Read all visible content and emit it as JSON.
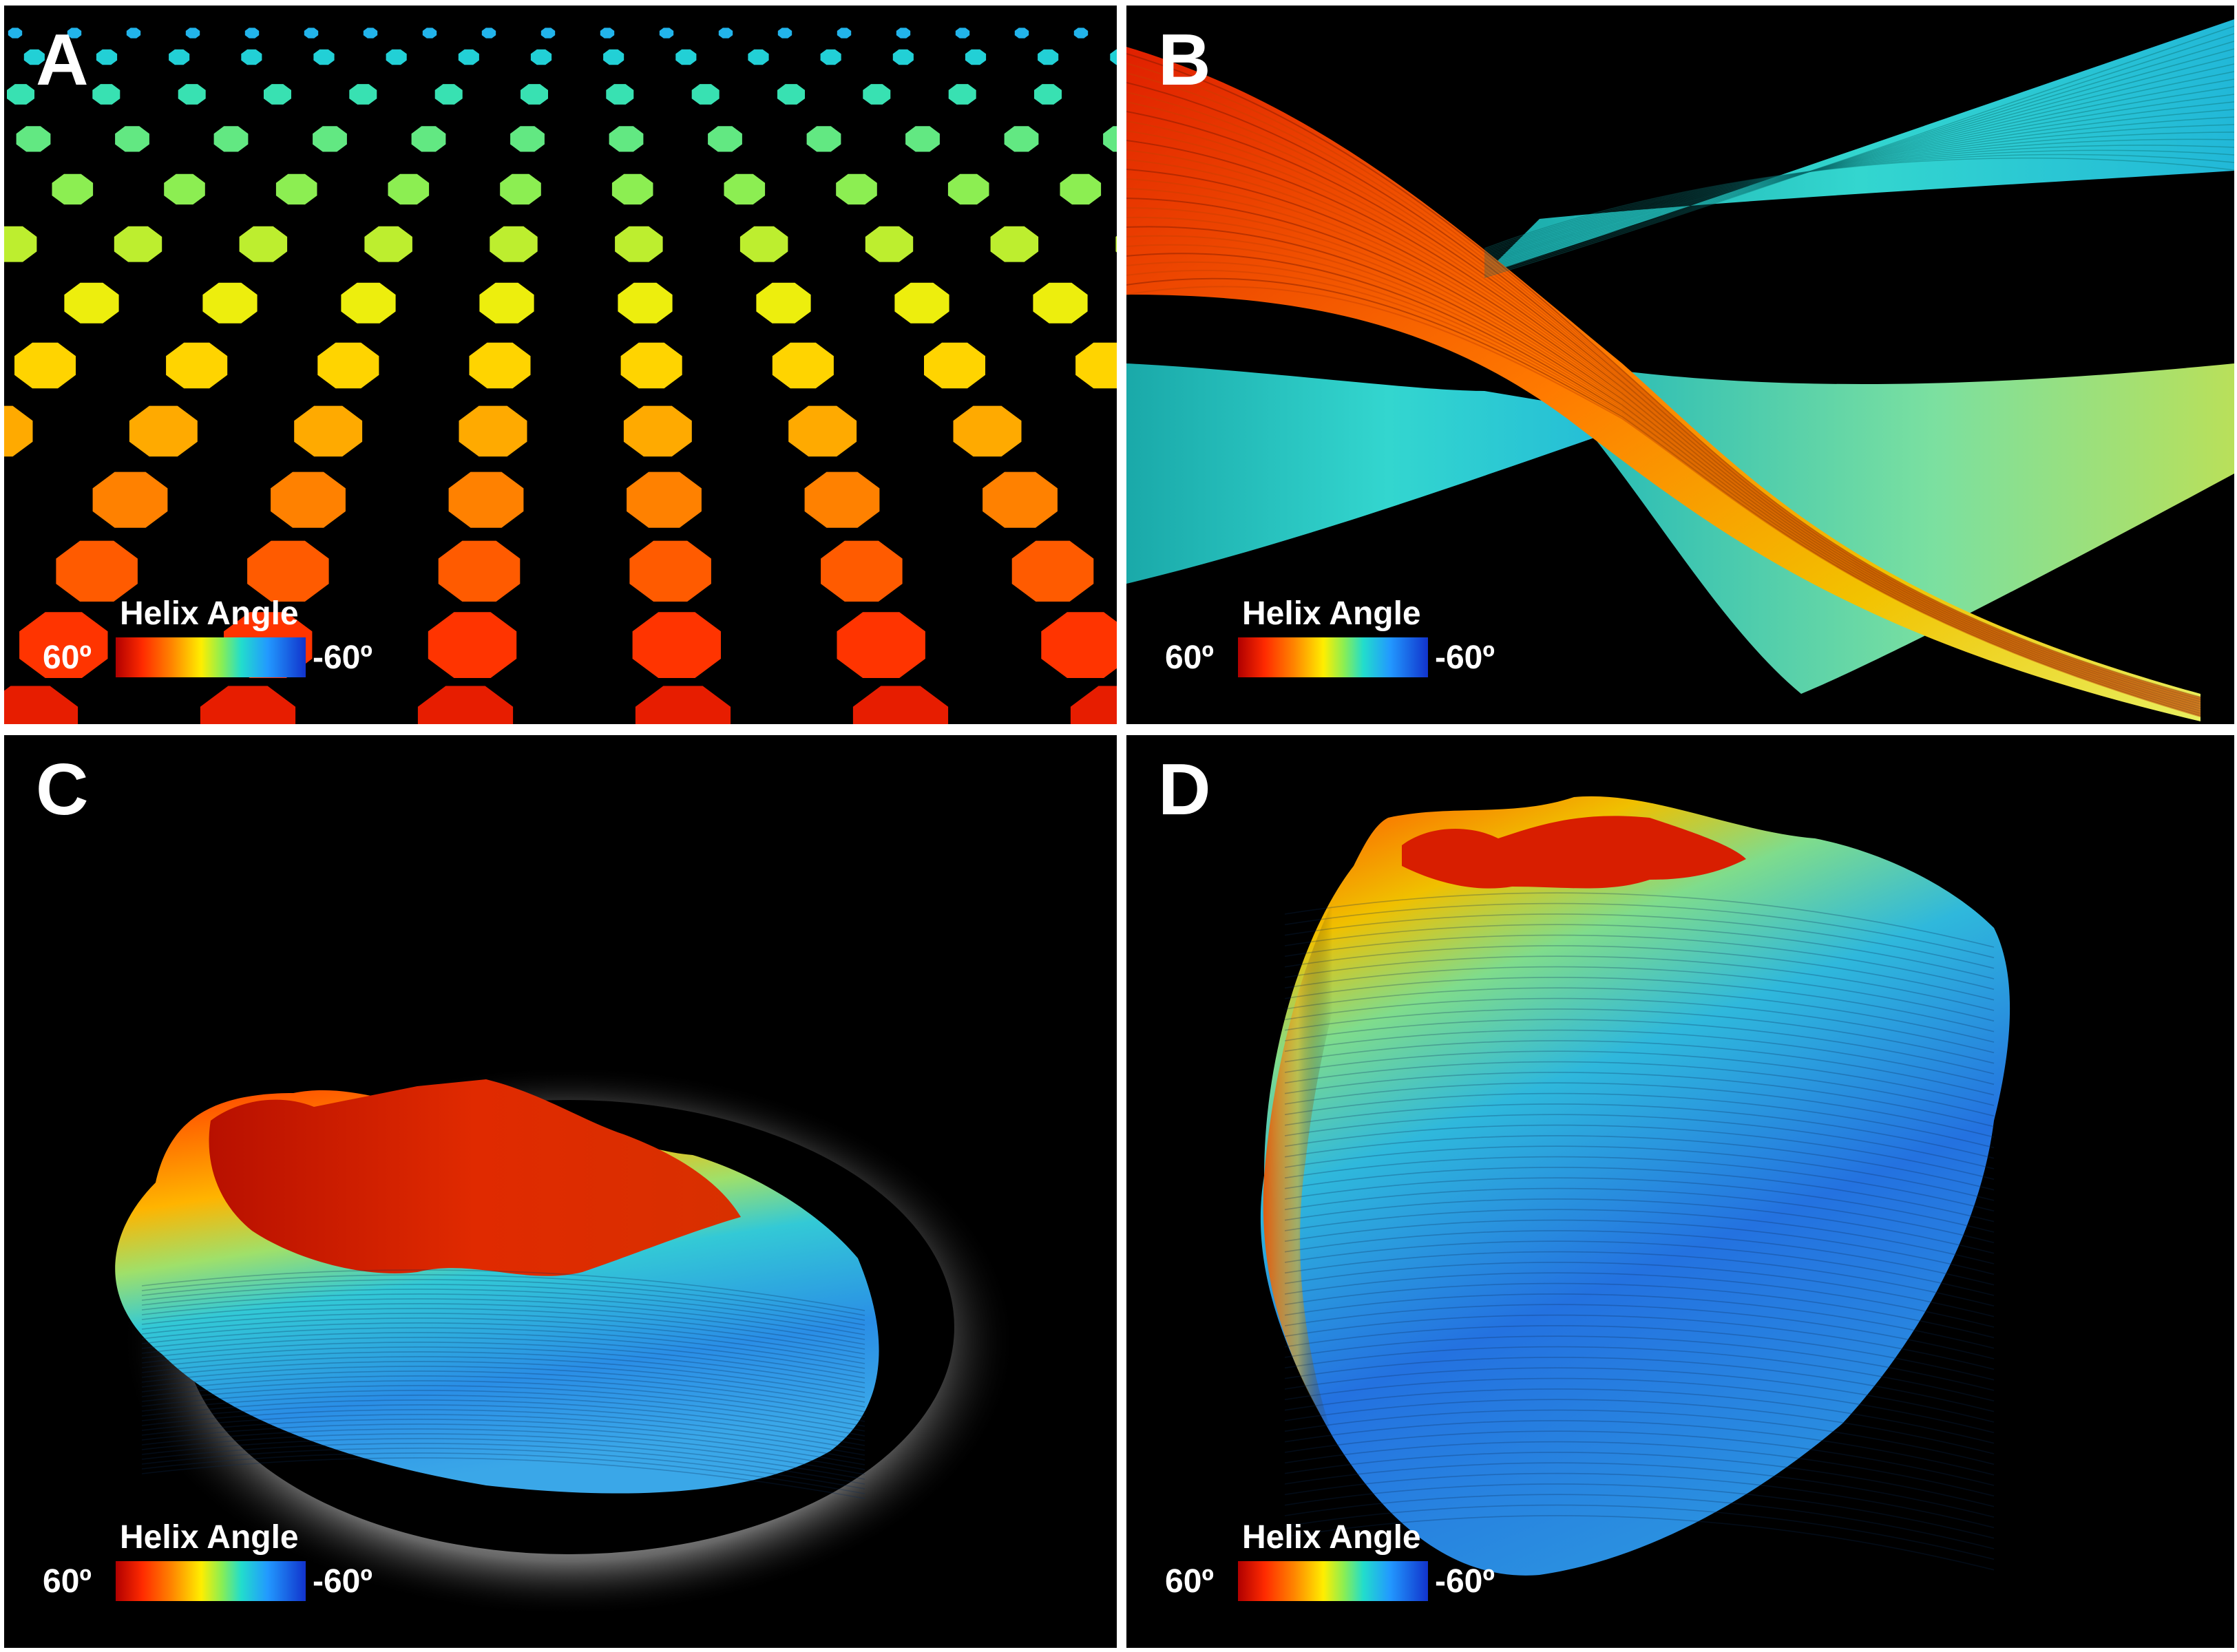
{
  "panels": [
    {
      "label": "A",
      "colorbar": {
        "title": "Helix Angle",
        "min": "60º",
        "max": "-60º"
      }
    },
    {
      "label": "B",
      "colorbar": {
        "title": "Helix Angle",
        "min": "60º",
        "max": "-60º"
      }
    },
    {
      "label": "C",
      "colorbar": {
        "title": "Helix Angle",
        "min": "60º",
        "max": "-60º"
      }
    },
    {
      "label": "D",
      "colorbar": {
        "title": "Helix Angle",
        "min": "60º",
        "max": "-60º"
      }
    }
  ],
  "colormap": [
    "#b00000",
    "#ff2a00",
    "#ff8800",
    "#ffee00",
    "#88ee55",
    "#22ddcc",
    "#2299ff",
    "#1133cc"
  ]
}
